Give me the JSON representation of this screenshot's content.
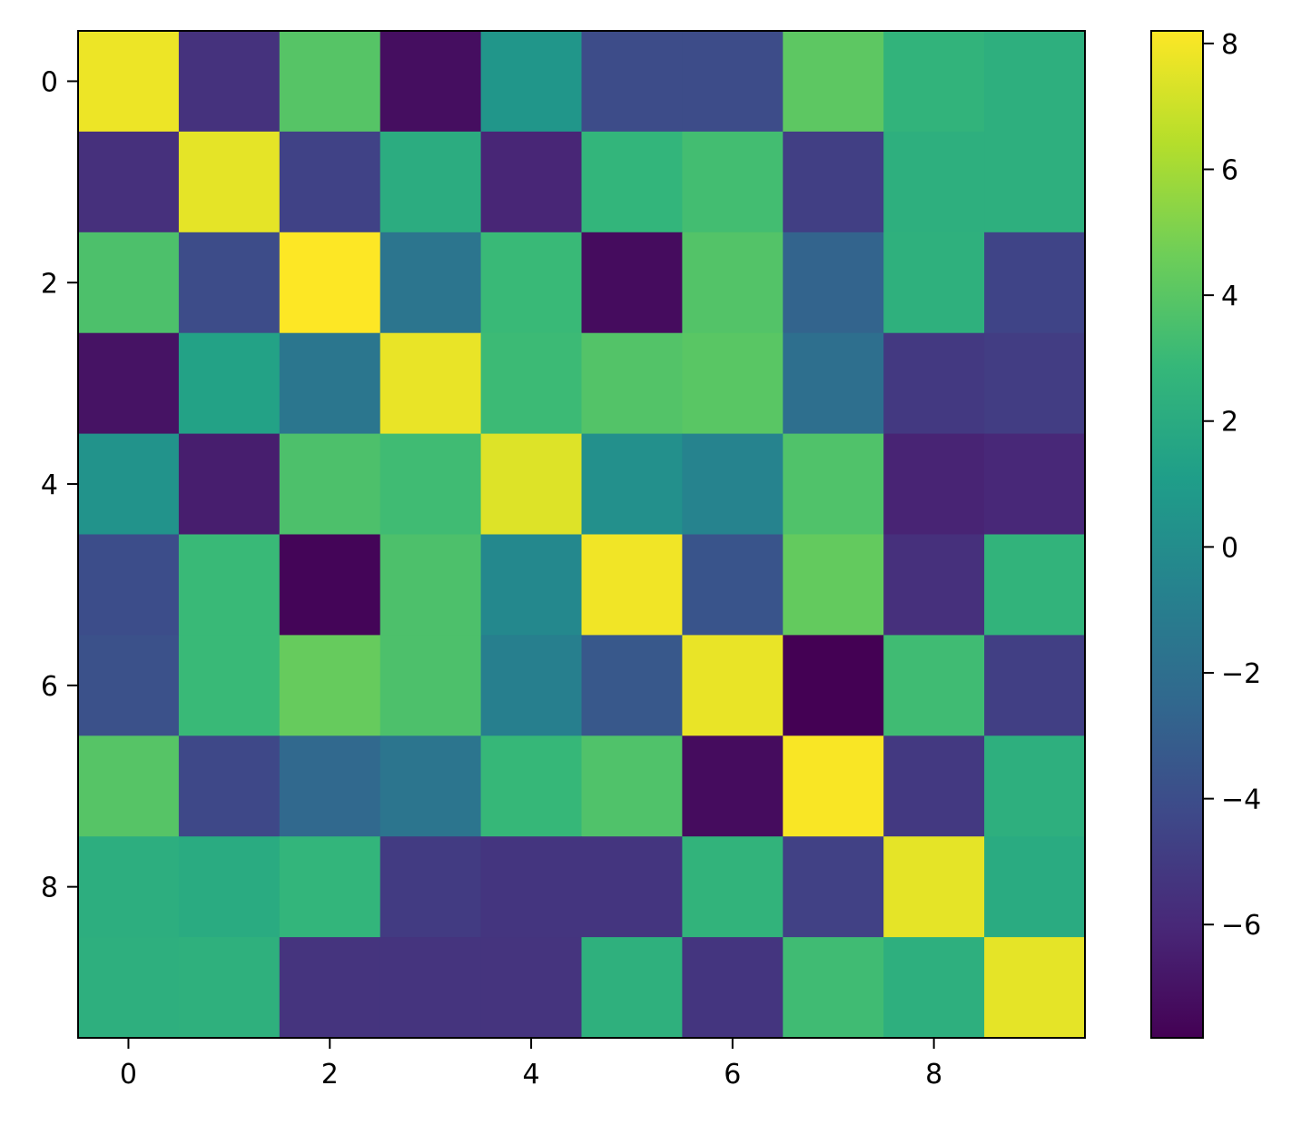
{
  "chart_data": {
    "type": "heatmap",
    "title": "",
    "xlabel": "",
    "ylabel": "",
    "rows": 10,
    "cols": 10,
    "values": [
      [
        7.8,
        -5.5,
        3.9,
        -7.2,
        0.6,
        -4.1,
        -4.1,
        4.1,
        2.6,
        2.3
      ],
      [
        -5.6,
        7.6,
        -4.6,
        2.1,
        -6.1,
        2.7,
        3.3,
        -4.8,
        2.3,
        2.3
      ],
      [
        3.6,
        -4.1,
        8.2,
        -1.6,
        3.0,
        -7.3,
        3.8,
        -2.7,
        2.4,
        -4.5
      ],
      [
        -7.0,
        1.4,
        -1.5,
        7.7,
        3.1,
        3.8,
        4.0,
        -2.0,
        -5.1,
        -4.9
      ],
      [
        0.4,
        -6.5,
        3.6,
        3.2,
        7.4,
        0.2,
        -0.6,
        3.7,
        -6.2,
        -6.0
      ],
      [
        -4.0,
        3.0,
        -7.6,
        3.6,
        -0.3,
        7.9,
        -3.6,
        4.3,
        -5.6,
        2.6
      ],
      [
        -3.8,
        3.0,
        4.4,
        3.6,
        -0.9,
        -3.4,
        7.7,
        -7.8,
        3.2,
        -4.8
      ],
      [
        3.9,
        -4.3,
        -2.4,
        -1.6,
        2.9,
        3.7,
        -7.3,
        8.1,
        -5.1,
        2.3
      ],
      [
        2.2,
        2.0,
        2.7,
        -5.0,
        -5.3,
        -5.3,
        2.6,
        -4.7,
        7.6,
        2.0
      ],
      [
        2.3,
        2.4,
        -5.4,
        -5.4,
        -5.4,
        2.4,
        -5.3,
        3.2,
        2.3,
        7.6
      ]
    ],
    "xlim": [
      -0.5,
      9.5
    ],
    "ylim": [
      9.5,
      -0.5
    ],
    "x_ticks": [
      0,
      2,
      4,
      6,
      8
    ],
    "y_ticks": [
      0,
      2,
      4,
      6,
      8
    ],
    "x_tick_labels": [
      "0",
      "2",
      "4",
      "6",
      "8"
    ],
    "y_tick_labels": [
      "0",
      "2",
      "4",
      "6",
      "8"
    ],
    "colormap": "viridis",
    "color_range": [
      -7.8,
      8.2
    ],
    "colorbar": {
      "position": "right",
      "ticks": [
        -6,
        -4,
        -2,
        0,
        2,
        4,
        6,
        8
      ],
      "tick_labels": [
        "−6",
        "−4",
        "−2",
        "0",
        "2",
        "4",
        "6",
        "8"
      ]
    },
    "grid": false
  }
}
